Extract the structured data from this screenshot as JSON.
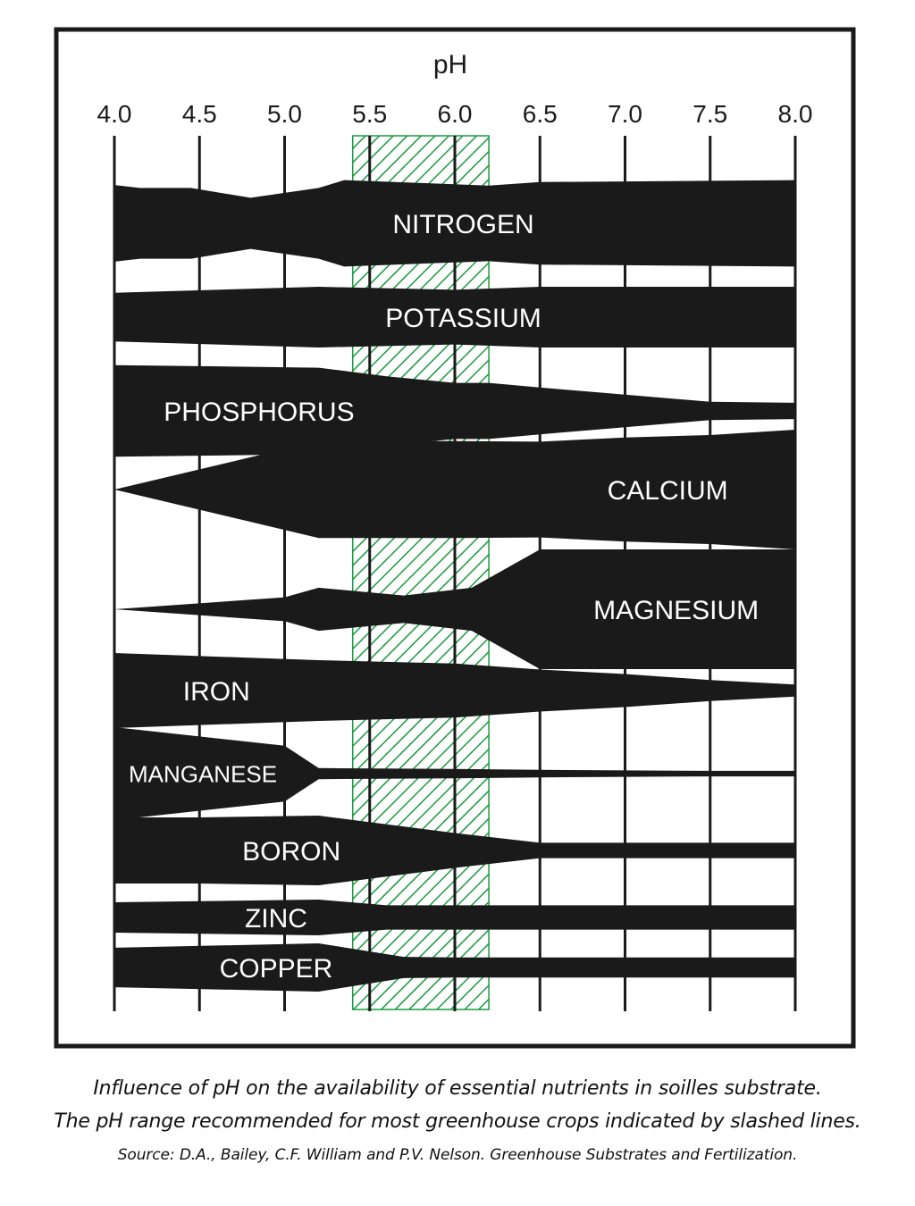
{
  "chart_data": {
    "type": "area",
    "xlabel": "pH",
    "ticks": [
      "4.0",
      "4.5",
      "5.0",
      "5.5",
      "6.0",
      "6.5",
      "7.0",
      "7.5",
      "8.0"
    ],
    "xlim": [
      4.0,
      8.0
    ],
    "recommended_range": [
      5.4,
      6.2
    ],
    "colors": {
      "band": "#1a1a1a",
      "hatch": "#1a9a3e",
      "text": "#ffffff",
      "frame": "#1a1a1a"
    },
    "nutrients": [
      {
        "name": "NITROGEN",
        "label_at": [
          6.05,
          0
        ],
        "points": [
          [
            4.0,
            0.78
          ],
          [
            4.15,
            0.72
          ],
          [
            4.45,
            0.72
          ],
          [
            4.8,
            0.52
          ],
          [
            5.2,
            0.72
          ],
          [
            5.35,
            0.88
          ],
          [
            6.2,
            0.77
          ],
          [
            6.5,
            0.84
          ],
          [
            8.0,
            0.88
          ]
        ]
      },
      {
        "name": "POTASSIUM",
        "label_at": [
          6.05,
          0
        ],
        "points": [
          [
            4.0,
            0.8
          ],
          [
            5.2,
            1.0
          ],
          [
            6.0,
            0.9
          ],
          [
            6.5,
            1.0
          ],
          [
            8.0,
            1.0
          ]
        ]
      },
      {
        "name": "PHOSPHORUS",
        "label_at": [
          4.85,
          0
        ],
        "points": [
          [
            4.0,
            0.9
          ],
          [
            5.2,
            0.85
          ],
          [
            5.6,
            0.68
          ],
          [
            6.0,
            0.55
          ],
          [
            6.2,
            0.55
          ],
          [
            6.5,
            0.46
          ],
          [
            7.0,
            0.32
          ],
          [
            7.5,
            0.18
          ],
          [
            8.0,
            0.16
          ]
        ]
      },
      {
        "name": "CALCIUM",
        "label_at": [
          7.25,
          0
        ],
        "points": [
          [
            4.0,
            0.0
          ],
          [
            5.2,
            0.81
          ],
          [
            6.0,
            0.81
          ],
          [
            6.5,
            0.8
          ],
          [
            7.0,
            0.87
          ],
          [
            7.5,
            0.91
          ],
          [
            8.0,
            1.0
          ]
        ]
      },
      {
        "name": "MAGNESIUM",
        "label_at": [
          7.3,
          0
        ],
        "points": [
          [
            4.0,
            0.0
          ],
          [
            5.0,
            0.2
          ],
          [
            5.2,
            0.36
          ],
          [
            5.7,
            0.23
          ],
          [
            6.1,
            0.36
          ],
          [
            6.5,
            1.0
          ],
          [
            8.0,
            1.0
          ]
        ]
      },
      {
        "name": "IRON",
        "label_at": [
          4.6,
          0
        ],
        "points": [
          [
            4.0,
            1.0
          ],
          [
            5.2,
            0.81
          ],
          [
            6.0,
            0.72
          ],
          [
            6.5,
            0.56
          ],
          [
            7.0,
            0.44
          ],
          [
            7.5,
            0.28
          ],
          [
            8.0,
            0.16
          ]
        ]
      },
      {
        "name": "MANGANESE",
        "label_at": [
          4.52,
          0
        ],
        "points": [
          [
            4.0,
            1.0
          ],
          [
            5.0,
            0.6
          ],
          [
            5.2,
            0.12
          ],
          [
            6.0,
            0.1
          ],
          [
            6.5,
            0.08
          ],
          [
            7.0,
            0.07
          ],
          [
            7.5,
            0.06
          ],
          [
            8.0,
            0.06
          ]
        ]
      },
      {
        "name": "BORON",
        "label_at": [
          5.04,
          0
        ],
        "points": [
          [
            4.0,
            0.95
          ],
          [
            4.5,
            0.95
          ],
          [
            5.2,
            1.0
          ],
          [
            6.0,
            0.5
          ],
          [
            6.5,
            0.22
          ],
          [
            7.0,
            0.22
          ],
          [
            8.0,
            0.22
          ]
        ]
      },
      {
        "name": "ZINC",
        "label_at": [
          4.95,
          0
        ],
        "points": [
          [
            4.0,
            0.85
          ],
          [
            5.2,
            1.0
          ],
          [
            5.6,
            0.68
          ],
          [
            6.0,
            0.68
          ],
          [
            6.5,
            0.68
          ],
          [
            8.0,
            0.68
          ]
        ]
      },
      {
        "name": "COPPER",
        "label_at": [
          4.95,
          0
        ],
        "points": [
          [
            4.0,
            0.82
          ],
          [
            5.2,
            1.0
          ],
          [
            5.7,
            0.44
          ],
          [
            6.0,
            0.42
          ],
          [
            6.5,
            0.42
          ],
          [
            8.0,
            0.42
          ]
        ]
      }
    ]
  },
  "caption": {
    "line1": "Influence of pH on the availability of essential nutrients in soilles substrate.",
    "line2": "The pH range recommended for most greenhouse crops indicated by slashed lines.",
    "source": "Source: D.A., Bailey, C.F. William and P.V. Nelson. Greenhouse Substrates and Fertilization."
  }
}
